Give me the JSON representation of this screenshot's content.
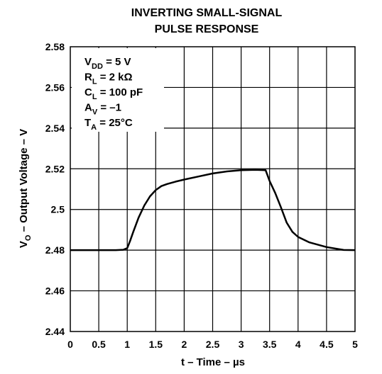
{
  "chart_data": {
    "type": "line",
    "title_line1": "INVERTING SMALL-SIGNAL",
    "title_line2": "PULSE RESPONSE",
    "xlabel": "t – Time – µs",
    "ylabel": {
      "main": "V",
      "sub": "O",
      "rest": " – Output Voltage – V"
    },
    "xlim": [
      0,
      5
    ],
    "ylim": [
      2.44,
      2.58
    ],
    "grid": true,
    "x_ticks": [
      "0",
      "0.5",
      "1",
      "1.5",
      "2",
      "2.5",
      "3",
      "3.5",
      "4",
      "4.5",
      "5"
    ],
    "y_ticks": [
      "2.58",
      "2.56",
      "2.54",
      "2.52",
      "2.5",
      "2.48",
      "2.46",
      "2.44"
    ],
    "conditions": [
      {
        "main": "V",
        "sub": "DD",
        "rest": " = 5 V"
      },
      {
        "main": "R",
        "sub": "L",
        "rest": " = 2 kΩ"
      },
      {
        "main": "C",
        "sub": "L",
        "rest": " = 100 pF"
      },
      {
        "main": "A",
        "sub": "V",
        "rest": " = –1"
      },
      {
        "main": "T",
        "sub": "A",
        "rest": " = 25°C"
      }
    ],
    "series": [
      {
        "x": [
          0,
          0.5,
          0.8,
          0.93,
          1.0,
          1.05,
          1.1,
          1.2,
          1.3,
          1.4,
          1.5,
          1.6,
          1.7,
          1.85,
          2.0,
          2.25,
          2.5,
          2.75,
          3.0,
          3.25,
          3.43,
          3.5,
          3.6,
          3.7,
          3.8,
          3.9,
          4.0,
          4.2,
          4.5,
          4.8,
          5.0
        ],
        "y": [
          2.48,
          2.48,
          2.48,
          2.4802,
          2.481,
          2.4845,
          2.4885,
          2.496,
          2.502,
          2.5065,
          2.5095,
          2.5115,
          2.5125,
          2.5137,
          2.5147,
          2.5162,
          2.5177,
          2.5187,
          2.5193,
          2.5195,
          2.5193,
          2.514,
          2.508,
          2.501,
          2.4935,
          2.489,
          2.4865,
          2.4838,
          2.4815,
          2.4801,
          2.48
        ]
      }
    ]
  }
}
